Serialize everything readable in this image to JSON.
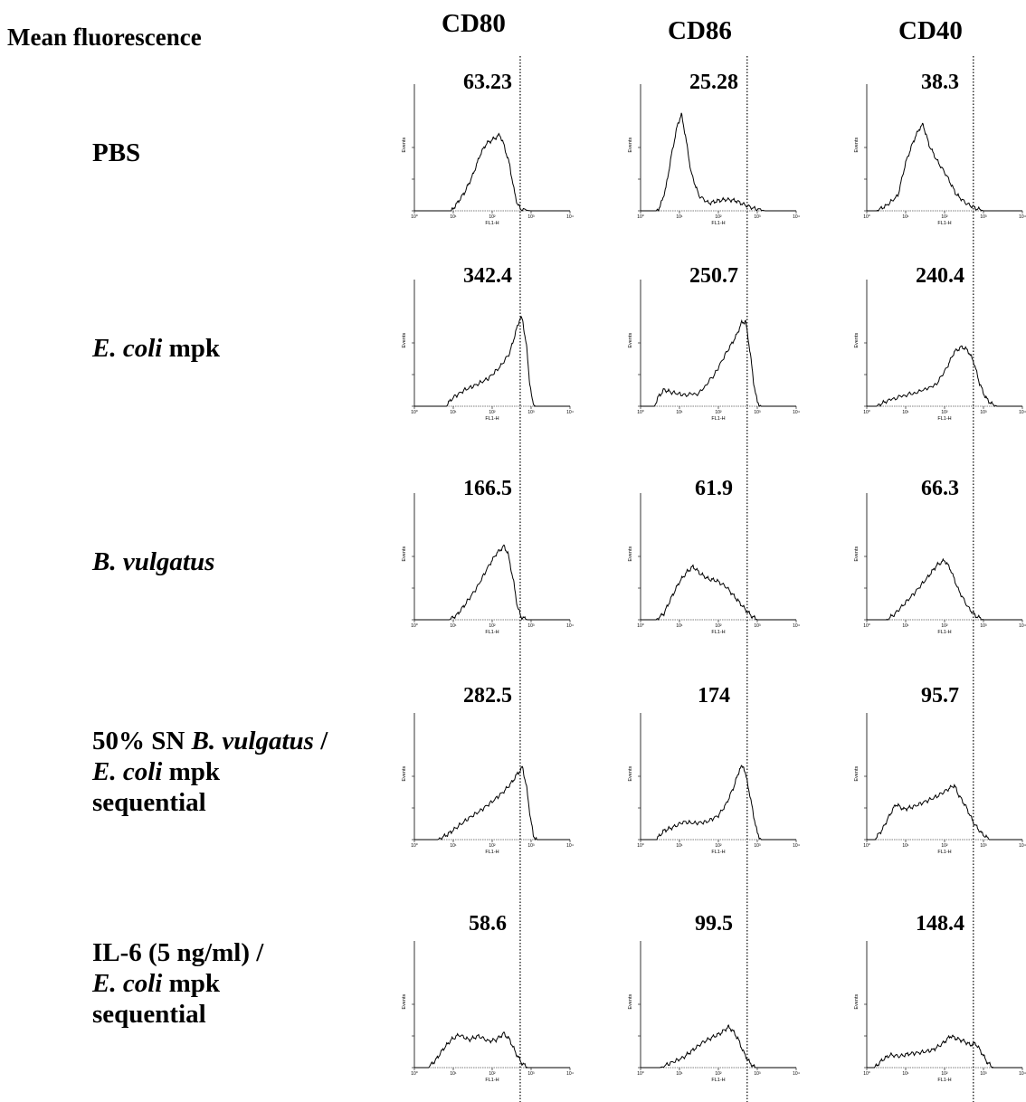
{
  "heading": "Mean fluorescence",
  "columns": [
    "CD80",
    "CD86",
    "CD40"
  ],
  "rows": [
    {
      "lines": [
        [
          {
            "t": "PBS",
            "i": false
          }
        ]
      ]
    },
    {
      "lines": [
        [
          {
            "t": "E. coli",
            "i": true
          },
          {
            "t": " mpk",
            "i": false
          }
        ]
      ]
    },
    {
      "lines": [
        [
          {
            "t": "B. vulgatus",
            "i": true
          }
        ]
      ]
    },
    {
      "lines": [
        [
          {
            "t": "50% SN ",
            "i": false
          },
          {
            "t": "B. vulgatus",
            "i": true
          },
          {
            "t": " /",
            "i": false
          }
        ],
        [
          {
            "t": "E. coli",
            "i": true
          },
          {
            "t": " mpk",
            "i": false
          }
        ],
        [
          {
            "t": "sequential",
            "i": false
          }
        ]
      ]
    },
    {
      "lines": [
        [
          {
            "t": "IL-6 (5 ng/ml) /",
            "i": false
          }
        ],
        [
          {
            "t": "E. coli",
            "i": true
          },
          {
            "t": " mpk",
            "i": false
          }
        ],
        [
          {
            "t": "sequential",
            "i": false
          }
        ]
      ]
    }
  ],
  "chart_data": {
    "type": "histogram_grid",
    "x_axis_label": "FL1-H",
    "y_axis_label": "Events",
    "x_scale": "log",
    "x_range": [
      1,
      10000
    ],
    "x_ticks": [
      "10⁰",
      "10¹",
      "10²",
      "10³",
      "10⁴"
    ],
    "reference_lines_log10": [
      2.72,
      2.74,
      2.74
    ],
    "mean_fluorescence": [
      [
        "63.23",
        "25.28",
        "38.3"
      ],
      [
        "342.4",
        "250.7",
        "240.4"
      ],
      [
        "166.5",
        "61.9",
        "66.3"
      ],
      [
        "282.5",
        "174",
        "95.7"
      ],
      [
        "58.6",
        "99.5",
        "148.4"
      ]
    ],
    "histograms": [
      [
        [
          [
            0,
            0
          ],
          [
            0.95,
            0
          ],
          [
            1.1,
            0.06
          ],
          [
            1.3,
            0.15
          ],
          [
            1.5,
            0.28
          ],
          [
            1.7,
            0.45
          ],
          [
            1.85,
            0.53
          ],
          [
            2.0,
            0.56
          ],
          [
            2.1,
            0.58
          ],
          [
            2.2,
            0.6
          ],
          [
            2.3,
            0.52
          ],
          [
            2.45,
            0.36
          ],
          [
            2.55,
            0.18
          ],
          [
            2.65,
            0.05
          ],
          [
            2.75,
            0.01
          ],
          [
            3.0,
            0
          ],
          [
            4,
            0
          ]
        ],
        [
          [
            0,
            0
          ],
          [
            0.4,
            0
          ],
          [
            0.5,
            0.03
          ],
          [
            0.65,
            0.18
          ],
          [
            0.8,
            0.45
          ],
          [
            0.95,
            0.68
          ],
          [
            1.05,
            0.76
          ],
          [
            1.15,
            0.6
          ],
          [
            1.3,
            0.3
          ],
          [
            1.5,
            0.12
          ],
          [
            1.75,
            0.06
          ],
          [
            2.0,
            0.08
          ],
          [
            2.2,
            0.09
          ],
          [
            2.45,
            0.08
          ],
          [
            2.65,
            0.05
          ],
          [
            2.9,
            0.02
          ],
          [
            3.2,
            0
          ],
          [
            4,
            0
          ]
        ],
        [
          [
            0,
            0
          ],
          [
            0.25,
            0
          ],
          [
            0.5,
            0.04
          ],
          [
            0.8,
            0.12
          ],
          [
            1.0,
            0.38
          ],
          [
            1.2,
            0.55
          ],
          [
            1.35,
            0.65
          ],
          [
            1.45,
            0.68
          ],
          [
            1.6,
            0.52
          ],
          [
            1.8,
            0.4
          ],
          [
            2.05,
            0.28
          ],
          [
            2.3,
            0.13
          ],
          [
            2.55,
            0.06
          ],
          [
            2.8,
            0.02
          ],
          [
            3.0,
            0
          ],
          [
            4,
            0
          ]
        ]
      ],
      [
        [
          [
            0,
            0
          ],
          [
            0.8,
            0
          ],
          [
            1.0,
            0.07
          ],
          [
            1.3,
            0.13
          ],
          [
            1.6,
            0.17
          ],
          [
            1.9,
            0.22
          ],
          [
            2.2,
            0.31
          ],
          [
            2.45,
            0.42
          ],
          [
            2.6,
            0.58
          ],
          [
            2.72,
            0.7
          ],
          [
            2.78,
            0.68
          ],
          [
            2.88,
            0.48
          ],
          [
            2.96,
            0.2
          ],
          [
            3.03,
            0.04
          ],
          [
            3.1,
            0
          ],
          [
            4,
            0
          ]
        ],
        [
          [
            0,
            0
          ],
          [
            0.35,
            0
          ],
          [
            0.45,
            0.07
          ],
          [
            0.6,
            0.13
          ],
          [
            0.8,
            0.11
          ],
          [
            1.1,
            0.09
          ],
          [
            1.5,
            0.1
          ],
          [
            1.9,
            0.25
          ],
          [
            2.2,
            0.42
          ],
          [
            2.45,
            0.55
          ],
          [
            2.6,
            0.66
          ],
          [
            2.7,
            0.67
          ],
          [
            2.82,
            0.42
          ],
          [
            2.9,
            0.2
          ],
          [
            3.0,
            0.03
          ],
          [
            3.1,
            0
          ],
          [
            4,
            0
          ]
        ],
        [
          [
            0,
            0
          ],
          [
            0.25,
            0
          ],
          [
            0.5,
            0.04
          ],
          [
            0.9,
            0.08
          ],
          [
            1.3,
            0.11
          ],
          [
            1.8,
            0.18
          ],
          [
            2.05,
            0.3
          ],
          [
            2.25,
            0.43
          ],
          [
            2.45,
            0.47
          ],
          [
            2.6,
            0.44
          ],
          [
            2.75,
            0.35
          ],
          [
            2.9,
            0.18
          ],
          [
            3.05,
            0.07
          ],
          [
            3.2,
            0.02
          ],
          [
            3.35,
            0
          ],
          [
            4,
            0
          ]
        ]
      ],
      [
        [
          [
            0,
            0
          ],
          [
            0.9,
            0
          ],
          [
            1.1,
            0.04
          ],
          [
            1.3,
            0.12
          ],
          [
            1.6,
            0.25
          ],
          [
            1.9,
            0.42
          ],
          [
            2.1,
            0.52
          ],
          [
            2.3,
            0.58
          ],
          [
            2.4,
            0.53
          ],
          [
            2.55,
            0.3
          ],
          [
            2.65,
            0.1
          ],
          [
            2.75,
            0.02
          ],
          [
            2.9,
            0
          ],
          [
            4,
            0
          ]
        ],
        [
          [
            0,
            0
          ],
          [
            0.4,
            0
          ],
          [
            0.6,
            0.05
          ],
          [
            0.8,
            0.18
          ],
          [
            1.0,
            0.3
          ],
          [
            1.2,
            0.38
          ],
          [
            1.35,
            0.42
          ],
          [
            1.55,
            0.36
          ],
          [
            1.75,
            0.32
          ],
          [
            1.95,
            0.31
          ],
          [
            2.2,
            0.26
          ],
          [
            2.45,
            0.17
          ],
          [
            2.7,
            0.08
          ],
          [
            2.85,
            0.03
          ],
          [
            3.0,
            0
          ],
          [
            4,
            0
          ]
        ],
        [
          [
            0,
            0
          ],
          [
            0.5,
            0
          ],
          [
            0.7,
            0.04
          ],
          [
            0.95,
            0.12
          ],
          [
            1.25,
            0.22
          ],
          [
            1.55,
            0.33
          ],
          [
            1.8,
            0.43
          ],
          [
            2.0,
            0.47
          ],
          [
            2.15,
            0.4
          ],
          [
            2.35,
            0.24
          ],
          [
            2.6,
            0.1
          ],
          [
            2.8,
            0.03
          ],
          [
            3.0,
            0
          ],
          [
            4,
            0
          ]
        ]
      ],
      [
        [
          [
            0,
            0
          ],
          [
            0.6,
            0
          ],
          [
            0.85,
            0.04
          ],
          [
            1.1,
            0.1
          ],
          [
            1.4,
            0.17
          ],
          [
            1.7,
            0.23
          ],
          [
            2.0,
            0.3
          ],
          [
            2.3,
            0.38
          ],
          [
            2.5,
            0.45
          ],
          [
            2.65,
            0.52
          ],
          [
            2.78,
            0.57
          ],
          [
            2.88,
            0.42
          ],
          [
            2.98,
            0.18
          ],
          [
            3.06,
            0.03
          ],
          [
            3.15,
            0
          ],
          [
            4,
            0
          ]
        ],
        [
          [
            0,
            0
          ],
          [
            0.4,
            0
          ],
          [
            0.6,
            0.07
          ],
          [
            0.85,
            0.1
          ],
          [
            1.1,
            0.14
          ],
          [
            1.4,
            0.13
          ],
          [
            1.7,
            0.14
          ],
          [
            2.0,
            0.19
          ],
          [
            2.2,
            0.28
          ],
          [
            2.4,
            0.42
          ],
          [
            2.55,
            0.56
          ],
          [
            2.65,
            0.58
          ],
          [
            2.78,
            0.4
          ],
          [
            2.9,
            0.2
          ],
          [
            3.0,
            0.05
          ],
          [
            3.1,
            0
          ],
          [
            4,
            0
          ]
        ],
        [
          [
            0,
            0
          ],
          [
            0.2,
            0
          ],
          [
            0.4,
            0.08
          ],
          [
            0.6,
            0.2
          ],
          [
            0.75,
            0.28
          ],
          [
            0.95,
            0.24
          ],
          [
            1.2,
            0.26
          ],
          [
            1.5,
            0.3
          ],
          [
            1.8,
            0.34
          ],
          [
            2.05,
            0.39
          ],
          [
            2.25,
            0.43
          ],
          [
            2.35,
            0.36
          ],
          [
            2.55,
            0.26
          ],
          [
            2.75,
            0.13
          ],
          [
            2.95,
            0.05
          ],
          [
            3.15,
            0
          ],
          [
            4,
            0
          ]
        ]
      ],
      [
        [
          [
            0,
            0
          ],
          [
            0.35,
            0
          ],
          [
            0.55,
            0.06
          ],
          [
            0.75,
            0.15
          ],
          [
            0.95,
            0.22
          ],
          [
            1.15,
            0.26
          ],
          [
            1.4,
            0.22
          ],
          [
            1.65,
            0.25
          ],
          [
            1.9,
            0.21
          ],
          [
            2.1,
            0.22
          ],
          [
            2.3,
            0.27
          ],
          [
            2.45,
            0.22
          ],
          [
            2.6,
            0.12
          ],
          [
            2.75,
            0.04
          ],
          [
            2.9,
            0
          ],
          [
            4,
            0
          ]
        ],
        [
          [
            0,
            0
          ],
          [
            0.5,
            0
          ],
          [
            0.8,
            0.04
          ],
          [
            1.1,
            0.08
          ],
          [
            1.35,
            0.14
          ],
          [
            1.6,
            0.2
          ],
          [
            1.85,
            0.24
          ],
          [
            2.05,
            0.27
          ],
          [
            2.25,
            0.32
          ],
          [
            2.35,
            0.3
          ],
          [
            2.5,
            0.23
          ],
          [
            2.65,
            0.12
          ],
          [
            2.8,
            0.04
          ],
          [
            2.95,
            0
          ],
          [
            4,
            0
          ]
        ],
        [
          [
            0,
            0
          ],
          [
            0.2,
            0
          ],
          [
            0.4,
            0.06
          ],
          [
            0.6,
            0.1
          ],
          [
            0.85,
            0.09
          ],
          [
            1.1,
            0.11
          ],
          [
            1.4,
            0.12
          ],
          [
            1.7,
            0.14
          ],
          [
            1.95,
            0.19
          ],
          [
            2.15,
            0.25
          ],
          [
            2.3,
            0.23
          ],
          [
            2.5,
            0.21
          ],
          [
            2.65,
            0.18
          ],
          [
            2.8,
            0.19
          ],
          [
            2.95,
            0.12
          ],
          [
            3.1,
            0.04
          ],
          [
            3.25,
            0
          ],
          [
            4,
            0
          ]
        ]
      ]
    ]
  }
}
